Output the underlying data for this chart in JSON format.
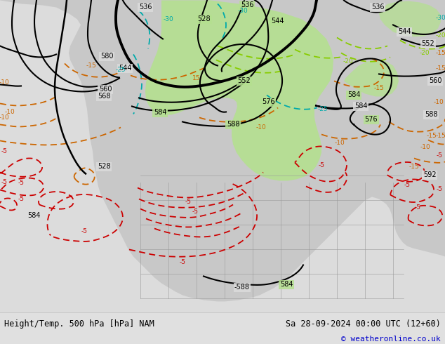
{
  "title_left": "Height/Temp. 500 hPa [hPa] NAM",
  "title_right": "Sa 28-09-2024 00:00 UTC (12+60)",
  "copyright": "© weatheronline.co.uk",
  "bg_color": "#c8c8c8",
  "land_color": "#dcdcdc",
  "ocean_color": "#c0c4c8",
  "green_color": "#b4e090",
  "fig_width": 6.34,
  "fig_height": 4.9,
  "dpi": 100,
  "bottom_bar_color": "#e0e0e0",
  "copyright_color": "#0000cc",
  "contour_color": "#000000",
  "temp_red": "#cc0000",
  "temp_orange": "#cc6600",
  "temp_cyan": "#00aaaa",
  "temp_green": "#44aa00",
  "temp_lgreen": "#88cc00"
}
